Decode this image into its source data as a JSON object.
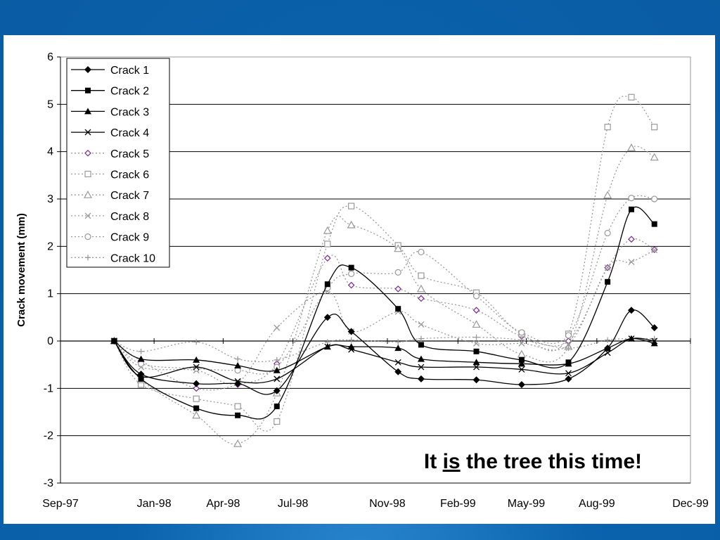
{
  "chart_data": {
    "type": "line",
    "title": "",
    "xlabel": "",
    "ylabel": "Crack movement (mm)",
    "ylim": [
      -3,
      6
    ],
    "yticks": [
      "6",
      "5",
      "4",
      "3",
      "2",
      "1",
      "0",
      "-1",
      "-2",
      "-3"
    ],
    "xlim": [
      "1997-09-01",
      "1999-12-01"
    ],
    "xtick_dates": [
      "1997-09-01",
      "1998-01-01",
      "1998-04-01",
      "1998-07-01",
      "1998-11-01",
      "1999-02-01",
      "1999-05-01",
      "1999-08-01",
      "1999-12-01"
    ],
    "xtick_labels": [
      "Sep-97",
      "Jan-98",
      "Apr-98",
      "Jul-98",
      "Nov-98",
      "Feb-99",
      "May-99",
      "Aug-99",
      "Dec-99"
    ],
    "grid": "horizontal",
    "legend_position": "top-left",
    "annotation": {
      "before": "It ",
      "underlined": "is",
      "after": " the tree this time!"
    },
    "x": [
      "1997-11-10",
      "1997-12-15",
      "1998-01-05",
      "1998-02-25",
      "1998-04-20",
      "1998-06-10",
      "1998-08-15",
      "1998-09-15",
      "1998-10-15",
      "1998-11-15",
      "1999-01-01",
      "1999-03-01",
      "1999-05-01",
      "1999-07-01",
      "1999-08-01",
      "1999-08-31",
      "1999-09-30",
      "1999-11-01"
    ],
    "series": [
      {
        "name": "Crack 1",
        "marker": "diamond",
        "style": "solid",
        "color": "#000000",
        "points": [
          [
            "1997-11-10",
            0
          ],
          [
            "1997-12-15",
            -0.7
          ],
          [
            "1998-02-25",
            -0.9
          ],
          [
            "1998-04-20",
            -0.9
          ],
          [
            "1998-06-10",
            -1.05
          ],
          [
            "1998-08-15",
            0.5
          ],
          [
            "1998-09-15",
            0.2
          ],
          [
            "1998-11-15",
            -0.65
          ],
          [
            "1998-12-15",
            -0.8
          ],
          [
            "1999-02-25",
            -0.82
          ],
          [
            "1999-04-25",
            -0.92
          ],
          [
            "1999-06-25",
            -0.8
          ],
          [
            "1999-08-15",
            -0.15
          ],
          [
            "1999-09-15",
            0.65
          ],
          [
            "1999-10-15",
            0.28
          ]
        ]
      },
      {
        "name": "Crack 2",
        "marker": "square",
        "style": "solid",
        "color": "#000000",
        "points": [
          [
            "1997-11-10",
            0
          ],
          [
            "1997-12-15",
            -0.8
          ],
          [
            "1998-02-25",
            -1.42
          ],
          [
            "1998-04-20",
            -1.57
          ],
          [
            "1998-06-10",
            -1.38
          ],
          [
            "1998-08-15",
            1.2
          ],
          [
            "1998-09-15",
            1.55
          ],
          [
            "1998-11-15",
            0.68
          ],
          [
            "1998-12-15",
            -0.08
          ],
          [
            "1999-02-25",
            -0.22
          ],
          [
            "1999-04-25",
            -0.4
          ],
          [
            "1999-06-25",
            -0.45
          ],
          [
            "1999-08-15",
            1.25
          ],
          [
            "1999-09-15",
            2.78
          ],
          [
            "1999-10-15",
            2.47
          ]
        ]
      },
      {
        "name": "Crack 3",
        "marker": "triangle",
        "style": "solid",
        "color": "#000000",
        "points": [
          [
            "1997-11-10",
            0
          ],
          [
            "1997-12-15",
            -0.38
          ],
          [
            "1998-02-25",
            -0.4
          ],
          [
            "1998-04-20",
            -0.52
          ],
          [
            "1998-06-10",
            -0.62
          ],
          [
            "1998-08-15",
            -0.12
          ],
          [
            "1998-09-15",
            -0.12
          ],
          [
            "1998-11-15",
            -0.15
          ],
          [
            "1998-12-15",
            -0.38
          ],
          [
            "1999-02-25",
            -0.45
          ],
          [
            "1999-04-25",
            -0.48
          ],
          [
            "1999-06-25",
            -0.48
          ],
          [
            "1999-08-15",
            -0.15
          ],
          [
            "1999-09-15",
            0.05
          ],
          [
            "1999-10-15",
            -0.05
          ]
        ]
      },
      {
        "name": "Crack 4",
        "marker": "x",
        "style": "solid",
        "color": "#000000",
        "points": [
          [
            "1997-11-10",
            0
          ],
          [
            "1997-12-15",
            -0.75
          ],
          [
            "1998-02-25",
            -0.55
          ],
          [
            "1998-04-20",
            -0.85
          ],
          [
            "1998-06-10",
            -0.8
          ],
          [
            "1998-08-15",
            -0.12
          ],
          [
            "1998-09-15",
            -0.18
          ],
          [
            "1998-11-15",
            -0.45
          ],
          [
            "1998-12-15",
            -0.55
          ],
          [
            "1999-02-25",
            -0.55
          ],
          [
            "1999-04-25",
            -0.6
          ],
          [
            "1999-06-25",
            -0.68
          ],
          [
            "1999-08-15",
            -0.25
          ],
          [
            "1999-09-15",
            0.05
          ],
          [
            "1999-10-15",
            0.0
          ]
        ]
      },
      {
        "name": "Crack 5",
        "marker": "diamond-open",
        "style": "dotted",
        "color": "#7a2a8a",
        "points": [
          [
            "1997-11-10",
            0
          ],
          [
            "1997-12-15",
            -0.42
          ],
          [
            "1998-02-25",
            -1.0
          ],
          [
            "1998-04-20",
            -0.92
          ],
          [
            "1998-06-10",
            -0.48
          ],
          [
            "1998-08-15",
            1.75
          ],
          [
            "1998-09-15",
            1.18
          ],
          [
            "1998-11-15",
            1.1
          ],
          [
            "1998-12-15",
            0.9
          ],
          [
            "1999-02-25",
            0.65
          ],
          [
            "1999-04-25",
            0.1
          ],
          [
            "1999-06-25",
            0.0
          ],
          [
            "1999-08-15",
            1.55
          ],
          [
            "1999-09-15",
            2.15
          ],
          [
            "1999-10-15",
            1.93
          ]
        ]
      },
      {
        "name": "Crack 6",
        "marker": "square-open",
        "style": "dotted",
        "color": "#999999",
        "points": [
          [
            "1997-11-10",
            0
          ],
          [
            "1997-12-15",
            -0.92
          ],
          [
            "1998-02-25",
            -1.22
          ],
          [
            "1998-04-20",
            -1.38
          ],
          [
            "1998-06-10",
            -1.7
          ],
          [
            "1998-08-15",
            2.05
          ],
          [
            "1998-09-15",
            2.85
          ],
          [
            "1998-11-15",
            2.02
          ],
          [
            "1998-12-15",
            1.38
          ],
          [
            "1999-02-25",
            1.02
          ],
          [
            "1999-04-25",
            0.15
          ],
          [
            "1999-06-25",
            0.15
          ],
          [
            "1999-08-15",
            4.52
          ],
          [
            "1999-09-15",
            5.15
          ],
          [
            "1999-10-15",
            4.52
          ]
        ]
      },
      {
        "name": "Crack 7",
        "marker": "triangle-open",
        "style": "dotted",
        "color": "#999999",
        "points": [
          [
            "1997-11-10",
            0
          ],
          [
            "1997-12-15",
            -0.82
          ],
          [
            "1998-02-25",
            -1.57
          ],
          [
            "1998-04-20",
            -2.17
          ],
          [
            "1998-06-10",
            -1.1
          ],
          [
            "1998-08-15",
            2.33
          ],
          [
            "1998-09-15",
            2.45
          ],
          [
            "1998-11-15",
            1.95
          ],
          [
            "1998-12-15",
            1.1
          ],
          [
            "1999-02-25",
            0.35
          ],
          [
            "1999-04-25",
            -0.28
          ],
          [
            "1999-06-25",
            -0.12
          ],
          [
            "1999-08-15",
            3.08
          ],
          [
            "1999-09-15",
            4.08
          ],
          [
            "1999-10-15",
            3.88
          ]
        ]
      },
      {
        "name": "Crack 8",
        "marker": "x",
        "style": "dotted",
        "color": "#999999",
        "points": [
          [
            "1997-11-10",
            0
          ],
          [
            "1997-12-15",
            -0.55
          ],
          [
            "1998-02-25",
            -0.62
          ],
          [
            "1998-04-20",
            -0.87
          ],
          [
            "1998-06-10",
            0.28
          ],
          [
            "1998-08-15",
            1.05
          ],
          [
            "1998-09-15",
            0.2
          ],
          [
            "1998-11-15",
            0.62
          ],
          [
            "1998-12-15",
            0.35
          ],
          [
            "1999-02-25",
            -0.05
          ],
          [
            "1999-04-25",
            -0.05
          ],
          [
            "1999-06-25",
            -0.08
          ],
          [
            "1999-08-15",
            1.55
          ],
          [
            "1999-09-15",
            1.67
          ],
          [
            "1999-10-15",
            1.92
          ]
        ]
      },
      {
        "name": "Crack 9",
        "marker": "circle-open",
        "style": "dotted",
        "color": "#999999",
        "points": [
          [
            "1997-11-10",
            0
          ],
          [
            "1997-12-15",
            -0.48
          ],
          [
            "1998-02-25",
            -0.58
          ],
          [
            "1998-04-20",
            -0.62
          ],
          [
            "1998-06-10",
            -0.55
          ],
          [
            "1998-08-15",
            1.12
          ],
          [
            "1998-09-15",
            1.42
          ],
          [
            "1998-11-15",
            1.45
          ],
          [
            "1998-12-15",
            1.88
          ],
          [
            "1999-02-25",
            0.95
          ],
          [
            "1999-04-25",
            0.18
          ],
          [
            "1999-06-25",
            0.12
          ],
          [
            "1999-08-15",
            2.28
          ],
          [
            "1999-09-15",
            3.02
          ],
          [
            "1999-10-15",
            3.0
          ]
        ]
      },
      {
        "name": "Crack 10",
        "marker": "plus",
        "style": "dotted",
        "color": "#999999",
        "points": [
          [
            "1997-11-10",
            0
          ],
          [
            "1997-12-15",
            -0.22
          ],
          [
            "1998-02-25",
            -0.02
          ],
          [
            "1998-04-20",
            -0.38
          ],
          [
            "1998-06-10",
            -0.4
          ],
          [
            "1998-08-15",
            -0.02
          ],
          [
            "1998-09-15",
            0.02
          ],
          [
            "1998-11-15",
            -0.02
          ],
          [
            "1998-12-15",
            0.05
          ],
          [
            "1999-02-25",
            0.08
          ],
          [
            "1999-04-25",
            0.02
          ],
          [
            "1999-06-25",
            -0.15
          ],
          [
            "1999-08-15",
            0.02
          ],
          [
            "1999-09-15",
            0.05
          ],
          [
            "1999-10-15",
            0.05
          ]
        ]
      }
    ]
  }
}
